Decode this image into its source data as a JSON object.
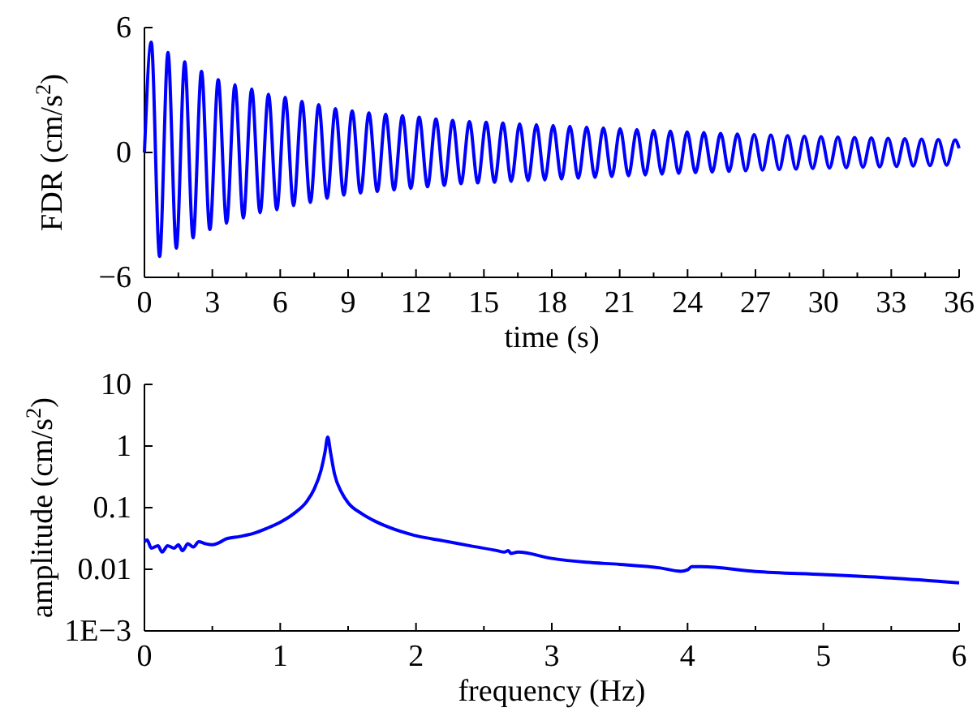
{
  "chart_data": [
    {
      "type": "line",
      "xlabel": "time (s)",
      "ylabel": "FDR (cm/s$^{2}$)",
      "xlim": [
        0,
        36
      ],
      "ylim": [
        -6,
        6
      ],
      "xticks": [
        0,
        {
          "value": 1.5,
          "label": null
        },
        3,
        {
          "value": 4.5,
          "label": null
        },
        6,
        {
          "value": 7.5,
          "label": null
        },
        9,
        {
          "value": 10.5,
          "label": null
        },
        12,
        {
          "value": 13.5,
          "label": null
        },
        15,
        {
          "value": 16.5,
          "label": null
        },
        18,
        {
          "value": 19.5,
          "label": null
        },
        21,
        {
          "value": 22.5,
          "label": null
        },
        24,
        {
          "value": 25.5,
          "label": null
        },
        27,
        {
          "value": 28.5,
          "label": null
        },
        30,
        {
          "value": 31.5,
          "label": null
        },
        33,
        {
          "value": 34.5,
          "label": null
        },
        36
      ],
      "yticks": [
        {
          "value": -6,
          "label": "−6"
        },
        0,
        6
      ],
      "grid": false,
      "marker": "none",
      "line_style": "solid",
      "series": [
        {
          "color": "#0000ff",
          "x": [
            0,
            0.3,
            0.67,
            1.04,
            1.41,
            1.78,
            2.15,
            2.52,
            2.89,
            3.26,
            3.63,
            4.0,
            4.37,
            4.74,
            5.11,
            5.48,
            5.85,
            6.22,
            6.59,
            6.96,
            7.33,
            7.7,
            8.07,
            8.44,
            8.81,
            9.18,
            9.55,
            9.92,
            10.29,
            10.66,
            11.03,
            11.4,
            11.77,
            12.14,
            12.51,
            12.88,
            13.25,
            13.62,
            13.99,
            14.36,
            14.73,
            15.1,
            15.47,
            15.84,
            16.21,
            16.58,
            16.95,
            17.32,
            17.69,
            18.06,
            18.43,
            18.8,
            19.17,
            19.54,
            19.91,
            20.28,
            20.65,
            21.02,
            21.39,
            21.76,
            22.13,
            22.5,
            22.87,
            23.24,
            23.61,
            23.98,
            24.35,
            24.72,
            25.09,
            25.46,
            25.83,
            26.2,
            26.57,
            26.94,
            27.31,
            27.68,
            28.05,
            28.42,
            28.79,
            29.16,
            29.53,
            29.9,
            30.27,
            30.64,
            31.01,
            31.38,
            31.75,
            32.12,
            32.49,
            32.86,
            33.23,
            33.6,
            33.97,
            34.34,
            34.71,
            35.08,
            35.45,
            35.82,
            36
          ],
          "values": [
            0,
            5.3,
            -5.0,
            4.8,
            -4.6,
            4.35,
            -4.1,
            3.9,
            -3.7,
            3.5,
            -3.4,
            3.25,
            -3.15,
            3.05,
            -2.9,
            2.8,
            -2.75,
            2.65,
            -2.55,
            2.45,
            -2.4,
            2.3,
            -2.2,
            2.1,
            -2.05,
            2.0,
            -1.95,
            1.9,
            -1.87,
            1.83,
            -1.8,
            1.76,
            -1.72,
            1.69,
            -1.65,
            1.61,
            -1.58,
            1.54,
            -1.5,
            1.48,
            -1.46,
            1.45,
            -1.43,
            1.41,
            -1.39,
            1.37,
            -1.35,
            1.33,
            -1.32,
            1.3,
            -1.28,
            1.26,
            -1.24,
            1.22,
            -1.2,
            1.18,
            -1.16,
            1.14,
            -1.12,
            1.1,
            -1.08,
            1.06,
            -1.04,
            1.02,
            -1.0,
            0.98,
            -0.97,
            0.95,
            -0.94,
            0.92,
            -0.91,
            0.89,
            -0.88,
            0.86,
            -0.85,
            0.84,
            -0.82,
            0.81,
            -0.8,
            0.78,
            -0.77,
            0.76,
            -0.75,
            0.74,
            -0.73,
            0.72,
            -0.71,
            0.7,
            -0.69,
            0.68,
            -0.67,
            0.66,
            -0.65,
            0.64,
            -0.63,
            0.62,
            -0.61,
            0.6,
            0.2
          ]
        }
      ]
    },
    {
      "type": "line",
      "xlabel": "frequency (Hz)",
      "ylabel": "amplitude (cm/s$^{2}$)",
      "xlim": [
        0,
        6
      ],
      "ylim": [
        0.001,
        10
      ],
      "log": "y",
      "xticks": [
        0,
        {
          "value": 0.5,
          "label": null
        },
        1,
        {
          "value": 1.5,
          "label": null
        },
        2,
        {
          "value": 2.5,
          "label": null
        },
        3,
        {
          "value": 3.5,
          "label": null
        },
        4,
        {
          "value": 4.5,
          "label": null
        },
        5,
        {
          "value": 5.5,
          "label": null
        },
        6
      ],
      "yticks": [
        {
          "value": 0.001,
          "label": "1E−3"
        },
        0.01,
        0.1,
        1,
        10
      ],
      "grid": false,
      "marker": "none",
      "line_style": "solid",
      "series": [
        {
          "color": "#0000ff",
          "x": [
            0,
            0.02,
            0.05,
            0.1,
            0.13,
            0.17,
            0.22,
            0.25,
            0.28,
            0.32,
            0.36,
            0.4,
            0.45,
            0.5,
            0.55,
            0.6,
            0.7,
            0.8,
            0.9,
            1.0,
            1.1,
            1.2,
            1.25,
            1.3,
            1.33,
            1.35,
            1.37,
            1.4,
            1.45,
            1.5,
            1.6,
            1.7,
            1.8,
            2.0,
            2.2,
            2.4,
            2.6,
            2.65,
            2.68,
            2.7,
            2.75,
            3.0,
            3.25,
            3.5,
            3.8,
            3.95,
            4.0,
            4.03,
            4.1,
            4.5,
            5.0,
            5.5,
            6.0
          ],
          "values": [
            0.028,
            0.03,
            0.022,
            0.024,
            0.019,
            0.024,
            0.022,
            0.025,
            0.02,
            0.026,
            0.023,
            0.028,
            0.026,
            0.025,
            0.027,
            0.031,
            0.034,
            0.038,
            0.046,
            0.058,
            0.08,
            0.13,
            0.2,
            0.4,
            0.8,
            1.4,
            0.8,
            0.35,
            0.18,
            0.12,
            0.08,
            0.06,
            0.048,
            0.035,
            0.029,
            0.024,
            0.02,
            0.019,
            0.02,
            0.018,
            0.019,
            0.015,
            0.013,
            0.012,
            0.0105,
            0.0093,
            0.0098,
            0.011,
            0.011,
            0.0092,
            0.0082,
            0.0072,
            0.006
          ]
        }
      ]
    }
  ]
}
